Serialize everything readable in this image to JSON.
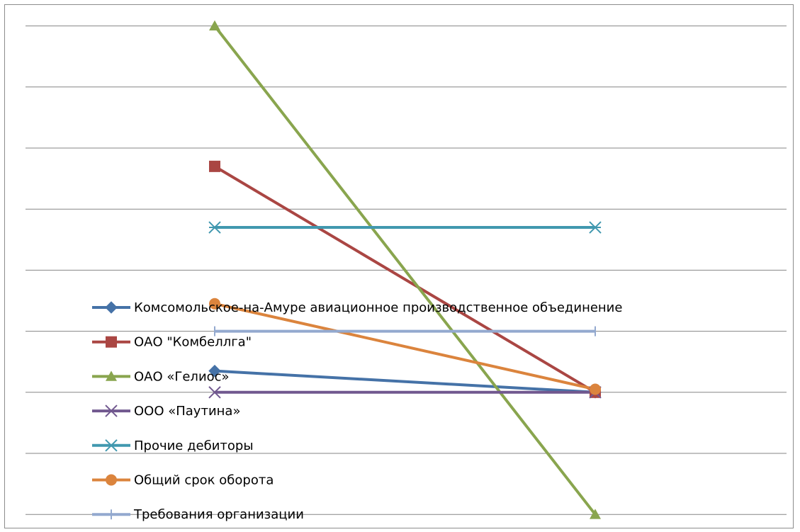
{
  "chart_data": {
    "type": "line",
    "title": "",
    "xlabel": "",
    "ylabel": "",
    "categories": [
      "",
      ""
    ],
    "ylim": [
      0,
      8
    ],
    "grid": true,
    "legend_position": "bottom-left (inside plot)",
    "series": [
      {
        "name": "Комсомольское-на-Амуре  авиационное производственное  объединение",
        "color": "#4572A7",
        "marker": "diamond",
        "values": [
          1.35,
          1.0
        ]
      },
      {
        "name": "ОАО \"Комбеллга\"",
        "color": "#AA4643",
        "marker": "square",
        "values": [
          4.7,
          1.0
        ]
      },
      {
        "name": "ОАО «Гелиос»",
        "color": "#89A54E",
        "marker": "triangle",
        "values": [
          7.0,
          -1.0
        ]
      },
      {
        "name": "ООО «Паутина»",
        "color": "#71588F",
        "marker": "x",
        "values": [
          1.0,
          1.0
        ]
      },
      {
        "name": "Прочие дебиторы",
        "color": "#4198AF",
        "marker": "star",
        "values": [
          3.7,
          3.7
        ]
      },
      {
        "name": "Общий срок оборота",
        "color": "#DB843D",
        "marker": "circle",
        "values": [
          2.45,
          1.05
        ]
      },
      {
        "name": "Требования организации",
        "color": "#93A9CF",
        "marker": "plus",
        "values": [
          2.0,
          2.0
        ]
      }
    ]
  }
}
